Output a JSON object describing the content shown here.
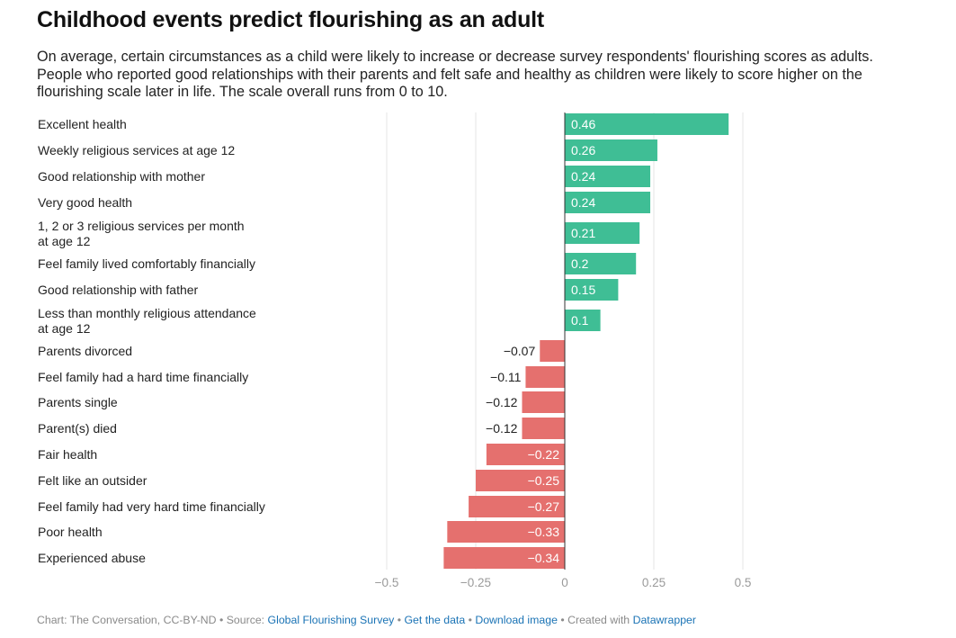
{
  "header": {
    "title": "Childhood events predict flourishing as an adult",
    "subtitle": "On average, certain circumstances as a child were likely to increase or decrease survey respondents' flourishing scores as adults. People who reported good relationships with their parents and felt safe and healthy as children were likely to score higher on the flourishing scale later in life. The scale overall runs from 0 to 10."
  },
  "footer": {
    "credit": "Chart: The Conversation, CC-BY-ND",
    "source_prefix": "Source:",
    "source_link": "Global Flourishing Survey",
    "get_data": "Get the data",
    "download_image": "Download image",
    "created_with_prefix": "Created with",
    "created_with_link": "Datawrapper",
    "separator": "•"
  },
  "colors": {
    "positive": "#3fbe95",
    "negative": "#e5706e",
    "gridline": "#e4e4e4",
    "axis_label": "#9a9a9a",
    "link": "#1a73b5"
  },
  "chart_data": {
    "type": "bar",
    "orientation": "horizontal",
    "title": "Childhood events predict flourishing as an adult",
    "xlim": [
      -0.5,
      0.5
    ],
    "xticks": [
      -0.5,
      -0.25,
      0,
      0.25,
      0.5
    ],
    "xtick_labels": [
      "−0.5",
      "−0.25",
      "0",
      "0.25",
      "0.5"
    ],
    "grid": true,
    "categories": [
      [
        "Excellent health"
      ],
      [
        "Weekly religious services at age 12"
      ],
      [
        "Good relationship with mother"
      ],
      [
        "Very good health"
      ],
      [
        "1, 2 or 3 religious services per month",
        "at age 12"
      ],
      [
        "Feel family lived comfortably financially"
      ],
      [
        "Good relationship with father"
      ],
      [
        "Less than monthly religious attendance",
        "at age 12"
      ],
      [
        "Parents divorced"
      ],
      [
        "Feel family had a hard time financially"
      ],
      [
        "Parents single"
      ],
      [
        "Parent(s) died"
      ],
      [
        "Fair health"
      ],
      [
        "Felt like an outsider"
      ],
      [
        "Feel family had very hard time financially"
      ],
      [
        "Poor health"
      ],
      [
        "Experienced abuse"
      ]
    ],
    "values": [
      0.46,
      0.26,
      0.24,
      0.24,
      0.21,
      0.2,
      0.15,
      0.1,
      -0.07,
      -0.11,
      -0.12,
      -0.12,
      -0.22,
      -0.25,
      -0.27,
      -0.33,
      -0.34
    ],
    "value_labels": [
      "0.46",
      "0.26",
      "0.24",
      "0.24",
      "0.21",
      "0.2",
      "0.15",
      "0.1",
      "−0.07",
      "−0.11",
      "−0.12",
      "−0.12",
      "−0.22",
      "−0.25",
      "−0.27",
      "−0.33",
      "−0.34"
    ]
  }
}
